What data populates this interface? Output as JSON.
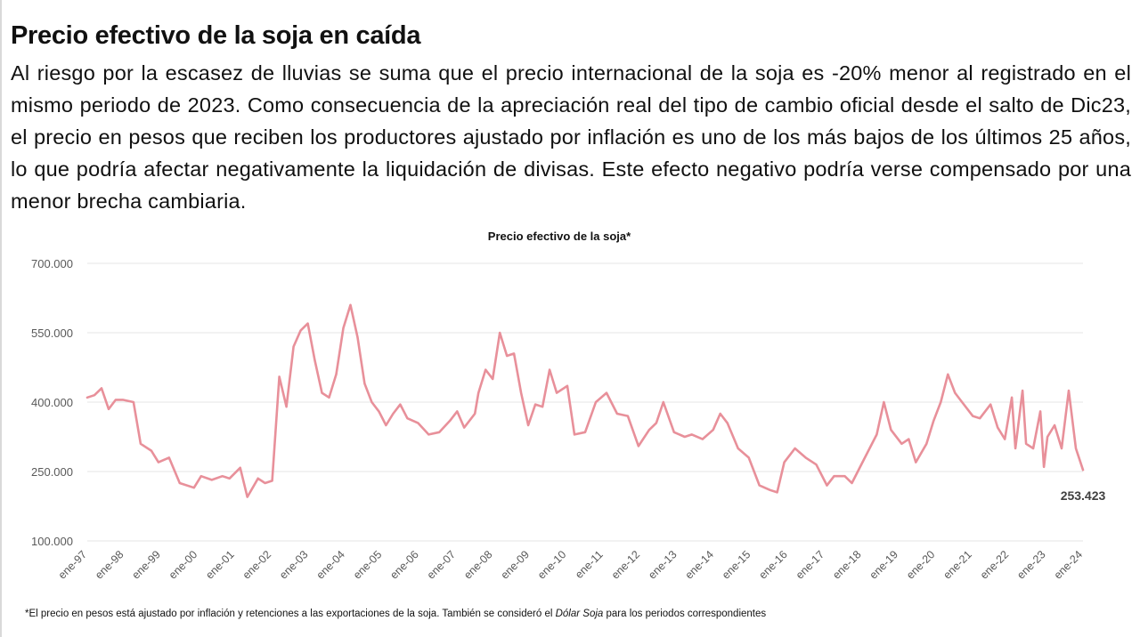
{
  "header": {
    "title": "Precio efectivo de la soja en caída",
    "paragraph": "Al riesgo por la escasez de lluvias se suma que el precio internacional de la soja es -20% menor al registrado en el mismo periodo de 2023. Como consecuencia de la apreciación real del tipo de cambio oficial desde el salto de Dic23, el precio en pesos que reciben los productores ajustado por inflación es uno de los más bajos de los últimos 25 años, lo que podría afectar negativamente la liquidación de divisas. Este efecto negativo podría verse compensado por una menor brecha cambiaria."
  },
  "footnote": {
    "before": "*El precio en pesos está ajustado por inflación y retenciones a las exportaciones de la soja. También se consideró el ",
    "italic": "Dólar Soja",
    "after": " para los periodos correspondientes"
  },
  "colors": {
    "line": "#e8909a",
    "grid": "#e6e6e6",
    "axis_text": "#595959"
  },
  "chart_data": {
    "type": "line",
    "title": "Precio efectivo de la soja*",
    "xlabel": "",
    "ylabel": "",
    "ylim": [
      100000,
      700000
    ],
    "yticks": [
      100000,
      250000,
      400000,
      550000,
      700000
    ],
    "ytick_labels": [
      "100.000",
      "250.000",
      "400.000",
      "550.000",
      "700.000"
    ],
    "xtick_labels": [
      "ene-97",
      "ene-98",
      "ene-99",
      "ene-00",
      "ene-01",
      "ene-02",
      "ene-03",
      "ene-04",
      "ene-05",
      "ene-06",
      "ene-07",
      "ene-08",
      "ene-09",
      "ene-10",
      "ene-11",
      "ene-12",
      "ene-13",
      "ene-14",
      "ene-15",
      "ene-16",
      "ene-17",
      "ene-18",
      "ene-19",
      "ene-20",
      "ene-21",
      "ene-22",
      "ene-23",
      "ene-24"
    ],
    "grid": true,
    "legend": "none",
    "last_value_label": "253.423",
    "series": [
      {
        "points": [
          [
            1997.0,
            410000
          ],
          [
            1997.2,
            415000
          ],
          [
            1997.4,
            430000
          ],
          [
            1997.6,
            385000
          ],
          [
            1997.8,
            405000
          ],
          [
            1998.0,
            405000
          ],
          [
            1998.3,
            400000
          ],
          [
            1998.5,
            310000
          ],
          [
            1998.8,
            295000
          ],
          [
            1999.0,
            270000
          ],
          [
            1999.3,
            280000
          ],
          [
            1999.6,
            225000
          ],
          [
            2000.0,
            215000
          ],
          [
            2000.2,
            240000
          ],
          [
            2000.5,
            232000
          ],
          [
            2000.8,
            240000
          ],
          [
            2001.0,
            235000
          ],
          [
            2001.3,
            258000
          ],
          [
            2001.5,
            195000
          ],
          [
            2001.8,
            235000
          ],
          [
            2002.0,
            225000
          ],
          [
            2002.2,
            230000
          ],
          [
            2002.4,
            455000
          ],
          [
            2002.6,
            390000
          ],
          [
            2002.8,
            520000
          ],
          [
            2003.0,
            555000
          ],
          [
            2003.2,
            570000
          ],
          [
            2003.4,
            490000
          ],
          [
            2003.6,
            420000
          ],
          [
            2003.8,
            410000
          ],
          [
            2004.0,
            460000
          ],
          [
            2004.2,
            560000
          ],
          [
            2004.4,
            610000
          ],
          [
            2004.6,
            540000
          ],
          [
            2004.8,
            440000
          ],
          [
            2005.0,
            400000
          ],
          [
            2005.2,
            380000
          ],
          [
            2005.4,
            350000
          ],
          [
            2005.6,
            375000
          ],
          [
            2005.8,
            395000
          ],
          [
            2006.0,
            365000
          ],
          [
            2006.3,
            355000
          ],
          [
            2006.6,
            330000
          ],
          [
            2006.9,
            335000
          ],
          [
            2007.2,
            360000
          ],
          [
            2007.4,
            380000
          ],
          [
            2007.6,
            345000
          ],
          [
            2007.9,
            375000
          ],
          [
            2008.0,
            420000
          ],
          [
            2008.2,
            470000
          ],
          [
            2008.4,
            450000
          ],
          [
            2008.6,
            550000
          ],
          [
            2008.8,
            500000
          ],
          [
            2009.0,
            505000
          ],
          [
            2009.2,
            420000
          ],
          [
            2009.4,
            350000
          ],
          [
            2009.6,
            395000
          ],
          [
            2009.8,
            390000
          ],
          [
            2010.0,
            470000
          ],
          [
            2010.2,
            420000
          ],
          [
            2010.5,
            435000
          ],
          [
            2010.7,
            330000
          ],
          [
            2011.0,
            335000
          ],
          [
            2011.3,
            400000
          ],
          [
            2011.6,
            420000
          ],
          [
            2011.9,
            375000
          ],
          [
            2012.2,
            370000
          ],
          [
            2012.5,
            305000
          ],
          [
            2012.8,
            340000
          ],
          [
            2013.0,
            355000
          ],
          [
            2013.2,
            400000
          ],
          [
            2013.5,
            335000
          ],
          [
            2013.8,
            325000
          ],
          [
            2014.0,
            330000
          ],
          [
            2014.3,
            320000
          ],
          [
            2014.6,
            340000
          ],
          [
            2014.8,
            375000
          ],
          [
            2015.0,
            355000
          ],
          [
            2015.3,
            300000
          ],
          [
            2015.6,
            280000
          ],
          [
            2015.9,
            220000
          ],
          [
            2016.2,
            210000
          ],
          [
            2016.4,
            205000
          ],
          [
            2016.6,
            270000
          ],
          [
            2016.9,
            300000
          ],
          [
            2017.2,
            280000
          ],
          [
            2017.5,
            265000
          ],
          [
            2017.8,
            220000
          ],
          [
            2018.0,
            240000
          ],
          [
            2018.3,
            240000
          ],
          [
            2018.5,
            225000
          ],
          [
            2018.8,
            270000
          ],
          [
            2019.0,
            300000
          ],
          [
            2019.2,
            330000
          ],
          [
            2019.4,
            400000
          ],
          [
            2019.6,
            340000
          ],
          [
            2019.9,
            310000
          ],
          [
            2020.1,
            320000
          ],
          [
            2020.3,
            270000
          ],
          [
            2020.6,
            310000
          ],
          [
            2020.8,
            360000
          ],
          [
            2021.0,
            400000
          ],
          [
            2021.2,
            460000
          ],
          [
            2021.4,
            420000
          ],
          [
            2021.6,
            400000
          ],
          [
            2021.9,
            370000
          ],
          [
            2022.1,
            365000
          ],
          [
            2022.4,
            395000
          ],
          [
            2022.6,
            345000
          ],
          [
            2022.8,
            320000
          ],
          [
            2023.0,
            410000
          ],
          [
            2023.1,
            300000
          ],
          [
            2023.3,
            425000
          ],
          [
            2023.4,
            310000
          ],
          [
            2023.6,
            300000
          ],
          [
            2023.8,
            380000
          ],
          [
            2023.9,
            260000
          ],
          [
            2024.0,
            325000
          ],
          [
            2024.2,
            350000
          ],
          [
            2024.4,
            300000
          ],
          [
            2024.6,
            425000
          ],
          [
            2024.8,
            300000
          ],
          [
            2025.0,
            253423
          ]
        ]
      }
    ]
  }
}
